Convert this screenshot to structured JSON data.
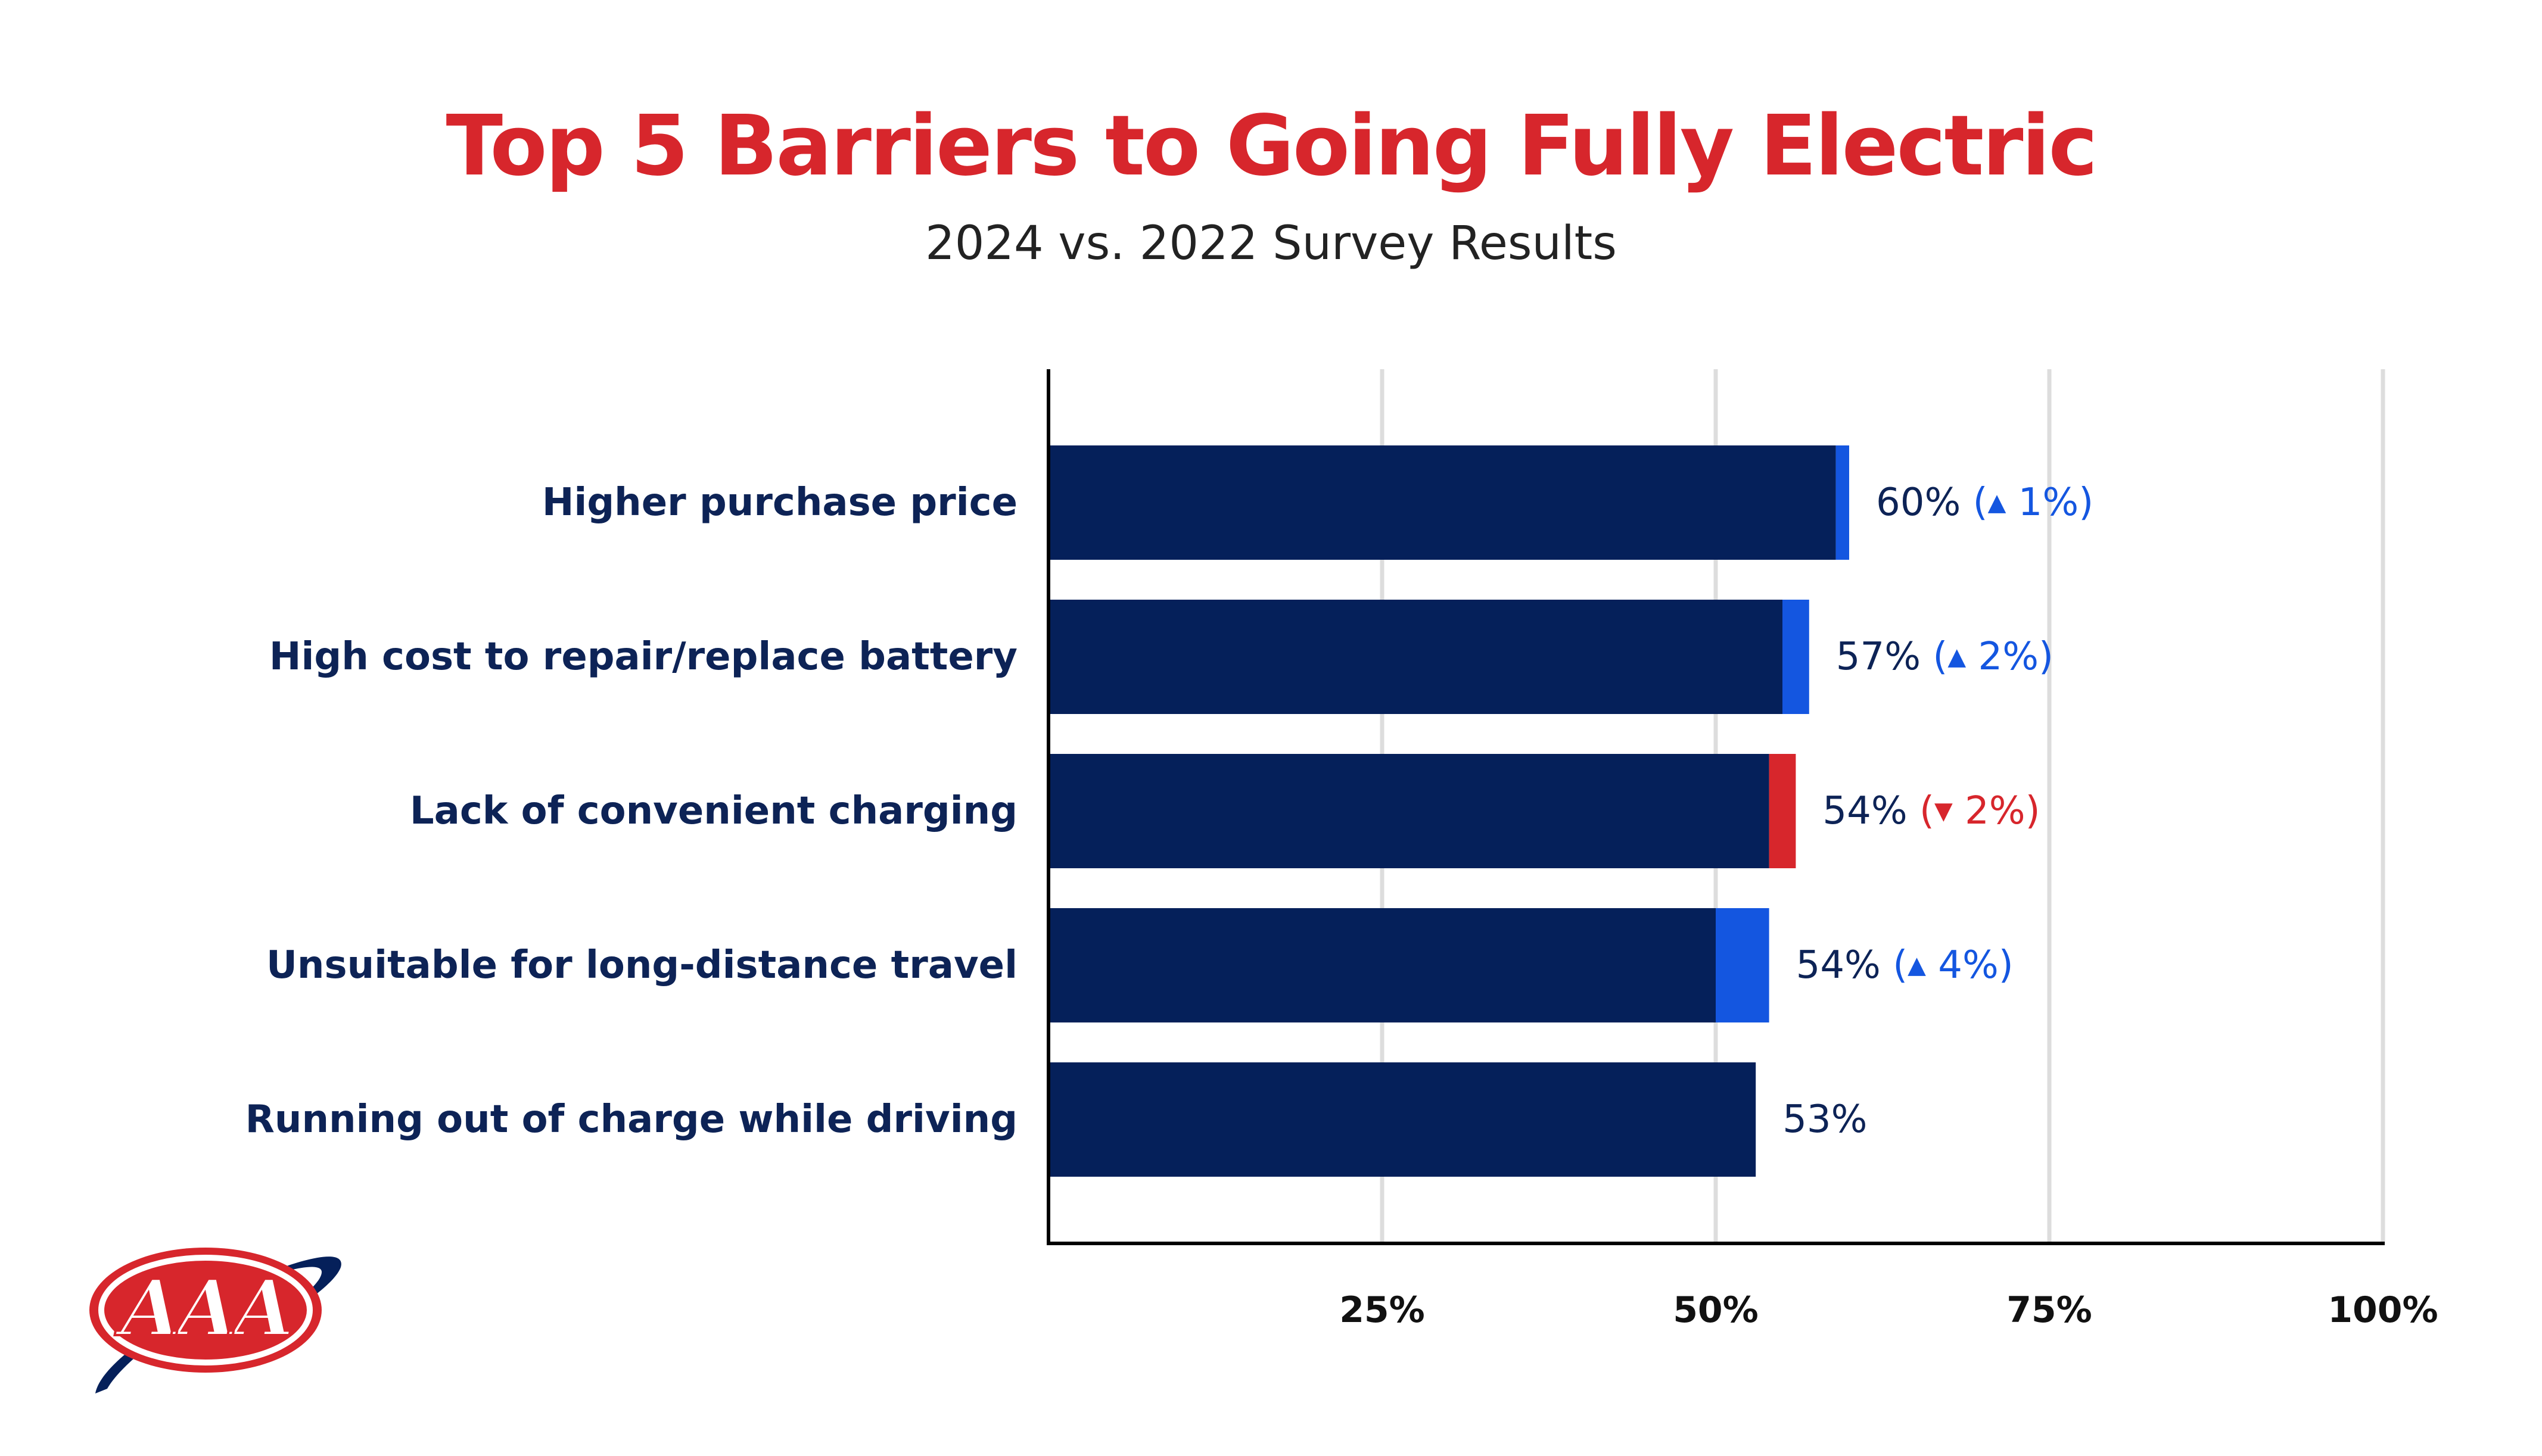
{
  "title": "Top 5 Barriers to Going Fully Electric",
  "subtitle": "2024 vs. 2022 Survey Results",
  "logo_text": "AAA",
  "colors": {
    "base": "#05205a",
    "increase": "#1456e0",
    "decrease": "#d7262c",
    "label": "#0d2356",
    "grid": "#dddddd",
    "axis": "#000000"
  },
  "chart_data": {
    "type": "bar",
    "orientation": "horizontal",
    "title": "Top 5 Barriers to Going Fully Electric",
    "subtitle": "2024 vs. 2022 Survey Results",
    "xlim": [
      0,
      100
    ],
    "grid": true,
    "x_ticks": [
      25,
      50,
      75,
      100
    ],
    "x_tick_labels": [
      "25%",
      "50%",
      "75%",
      "100%"
    ],
    "categories": [
      "Higher purchase price",
      "High cost to repair/replace battery",
      "Lack of convenient charging",
      "Unsuitable for long-distance travel",
      "Running out of charge while driving"
    ],
    "values_2024": [
      60,
      57,
      54,
      54,
      53
    ],
    "changes": [
      1,
      2,
      -2,
      4,
      null
    ],
    "value_labels": [
      "60%",
      "57%",
      "54%",
      "54%",
      "53%"
    ],
    "change_labels": [
      "1%",
      "2%",
      "2%",
      "4%",
      ""
    ]
  }
}
